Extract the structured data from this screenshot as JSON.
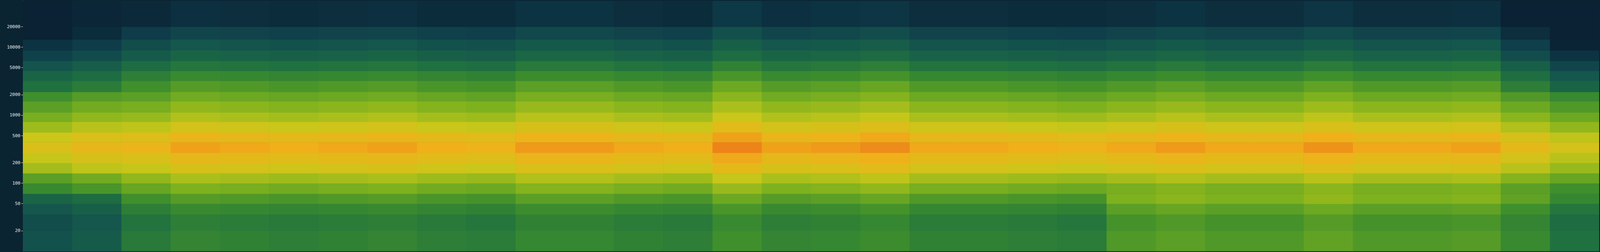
{
  "chart_data": {
    "type": "heatmap",
    "log": "y",
    "grid": false,
    "tick_labels": "y",
    "xlim": [
      0,
      32
    ],
    "ylim": [
      10,
      48000
    ],
    "yticks": [
      20,
      50,
      100,
      200,
      500,
      1000,
      2000,
      5000,
      10000,
      20000
    ],
    "zlim": [
      -120,
      -30
    ],
    "x_edges": [
      0,
      1,
      2,
      3,
      4,
      5,
      6,
      7,
      8,
      9,
      10,
      11,
      12,
      13,
      14,
      15,
      16,
      17,
      18,
      19,
      20,
      21,
      22,
      23,
      24,
      25,
      26,
      27,
      28,
      29,
      30,
      31,
      32
    ],
    "freq_edges": [
      10,
      20,
      35,
      50,
      70,
      100,
      140,
      200,
      280,
      400,
      560,
      800,
      1100,
      1600,
      2200,
      3200,
      4500,
      6300,
      9000,
      13000,
      20000,
      48000
    ],
    "cells": [
      [
        -100,
        -96,
        -83,
        -79,
        -80,
        -81,
        -80,
        -79,
        -81,
        -82,
        -78,
        -78,
        -80,
        -81,
        -75,
        -79,
        -78,
        -76,
        -80,
        -80,
        -81,
        -82,
        -72,
        -70,
        -72,
        -72,
        -69,
        -72,
        -72,
        -71,
        -77,
        -86
      ],
      [
        -102,
        -98,
        -85,
        -81,
        -82,
        -83,
        -82,
        -81,
        -83,
        -84,
        -80,
        -80,
        -82,
        -83,
        -77,
        -81,
        -80,
        -78,
        -82,
        -82,
        -83,
        -84,
        -74,
        -72,
        -74,
        -74,
        -71,
        -74,
        -74,
        -73,
        -79,
        -88
      ],
      [
        -98,
        -94,
        -81,
        -77,
        -78,
        -79,
        -78,
        -77,
        -79,
        -80,
        -76,
        -76,
        -78,
        -79,
        -73,
        -77,
        -76,
        -74,
        -78,
        -78,
        -79,
        -80,
        -70,
        -68,
        -70,
        -70,
        -67,
        -70,
        -70,
        -69,
        -75,
        -84
      ],
      [
        -92,
        -88,
        -75,
        -71,
        -72,
        -73,
        -72,
        -71,
        -73,
        -74,
        -70,
        -70,
        -72,
        -73,
        -67,
        -71,
        -70,
        -68,
        -72,
        -72,
        -73,
        -74,
        -64,
        -62,
        -64,
        -64,
        -61,
        -64,
        -64,
        -63,
        -69,
        -78
      ],
      [
        -77,
        -73,
        -68,
        -64,
        -65,
        -66,
        -65,
        -64,
        -66,
        -67,
        -63,
        -63,
        -65,
        -66,
        -60,
        -64,
        -63,
        -61,
        -65,
        -65,
        -66,
        -67,
        -65,
        -63,
        -65,
        -65,
        -62,
        -65,
        -65,
        -64,
        -70,
        -75
      ],
      [
        -70,
        -66,
        -61,
        -57,
        -58,
        -59,
        -58,
        -57,
        -59,
        -60,
        -56,
        -56,
        -58,
        -59,
        -53,
        -57,
        -56,
        -54,
        -58,
        -58,
        -59,
        -60,
        -58,
        -56,
        -58,
        -58,
        -55,
        -58,
        -58,
        -57,
        -63,
        -68
      ],
      [
        -58,
        -54,
        -53,
        -49,
        -50,
        -51,
        -50,
        -49,
        -51,
        -52,
        -48,
        -48,
        -50,
        -51,
        -45,
        -49,
        -48,
        -46,
        -50,
        -50,
        -51,
        -52,
        -50,
        -48,
        -50,
        -50,
        -47,
        -50,
        -50,
        -49,
        -55,
        -60
      ],
      [
        -53,
        -49,
        -48,
        -44,
        -45,
        -46,
        -45,
        -44,
        -46,
        -47,
        -43,
        -43,
        -45,
        -46,
        -40,
        -44,
        -43,
        -41,
        -45,
        -45,
        -46,
        -47,
        -45,
        -43,
        -45,
        -45,
        -42,
        -45,
        -45,
        -44,
        -50,
        -55
      ],
      [
        -48,
        -44,
        -43,
        -39,
        -40,
        -41,
        -40,
        -39,
        -41,
        -42,
        -38,
        -38,
        -40,
        -41,
        -35,
        -39,
        -38,
        -36,
        -40,
        -40,
        -41,
        -42,
        -40,
        -38,
        -40,
        -40,
        -37,
        -40,
        -40,
        -39,
        -45,
        -50
      ],
      [
        -52,
        -48,
        -47,
        -43,
        -44,
        -45,
        -44,
        -43,
        -45,
        -46,
        -42,
        -42,
        -44,
        -45,
        -39,
        -43,
        -42,
        -40,
        -44,
        -44,
        -45,
        -46,
        -44,
        -42,
        -44,
        -44,
        -41,
        -44,
        -44,
        -43,
        -49,
        -54
      ],
      [
        -59,
        -55,
        -54,
        -50,
        -51,
        -52,
        -51,
        -50,
        -52,
        -53,
        -49,
        -49,
        -51,
        -52,
        -46,
        -50,
        -49,
        -47,
        -51,
        -51,
        -52,
        -53,
        -51,
        -49,
        -51,
        -51,
        -48,
        -51,
        -51,
        -50,
        -56,
        -61
      ],
      [
        -65,
        -61,
        -60,
        -56,
        -57,
        -58,
        -57,
        -56,
        -58,
        -59,
        -55,
        -55,
        -57,
        -58,
        -52,
        -56,
        -55,
        -53,
        -57,
        -57,
        -58,
        -59,
        -57,
        -55,
        -57,
        -57,
        -54,
        -57,
        -57,
        -56,
        -62,
        -67
      ],
      [
        -70,
        -66,
        -65,
        -61,
        -62,
        -63,
        -62,
        -61,
        -63,
        -64,
        -60,
        -60,
        -62,
        -63,
        -57,
        -61,
        -60,
        -58,
        -62,
        -62,
        -63,
        -64,
        -62,
        -60,
        -62,
        -62,
        -59,
        -62,
        -62,
        -61,
        -67,
        -72
      ],
      [
        -75,
        -71,
        -70,
        -66,
        -67,
        -68,
        -67,
        -66,
        -68,
        -69,
        -65,
        -65,
        -67,
        -68,
        -62,
        -66,
        -65,
        -63,
        -67,
        -67,
        -68,
        -69,
        -67,
        -65,
        -67,
        -67,
        -64,
        -67,
        -67,
        -66,
        -72,
        -77
      ],
      [
        -86,
        -82,
        -75,
        -71,
        -72,
        -73,
        -72,
        -71,
        -73,
        -74,
        -70,
        -70,
        -72,
        -73,
        -67,
        -71,
        -70,
        -68,
        -72,
        -72,
        -73,
        -74,
        -72,
        -70,
        -72,
        -72,
        -69,
        -72,
        -72,
        -71,
        -81,
        -92
      ],
      [
        -92,
        -88,
        -81,
        -77,
        -78,
        -79,
        -78,
        -77,
        -79,
        -80,
        -76,
        -76,
        -78,
        -79,
        -73,
        -77,
        -76,
        -74,
        -78,
        -78,
        -79,
        -80,
        -78,
        -76,
        -78,
        -78,
        -75,
        -78,
        -78,
        -77,
        -87,
        -98
      ],
      [
        -99,
        -95,
        -88,
        -84,
        -85,
        -86,
        -85,
        -84,
        -86,
        -87,
        -83,
        -83,
        -85,
        -86,
        -80,
        -84,
        -83,
        -81,
        -85,
        -85,
        -86,
        -87,
        -85,
        -83,
        -85,
        -85,
        -82,
        -85,
        -85,
        -84,
        -94,
        -105
      ],
      [
        -107,
        -103,
        -96,
        -92,
        -93,
        -94,
        -93,
        -92,
        -94,
        -95,
        -91,
        -91,
        -93,
        -94,
        -88,
        -92,
        -91,
        -89,
        -93,
        -93,
        -94,
        -95,
        -93,
        -91,
        -93,
        -93,
        -90,
        -93,
        -93,
        -92,
        -102,
        -113
      ],
      [
        -113,
        -109,
        -102,
        -98,
        -99,
        -100,
        -99,
        -98,
        -100,
        -101,
        -97,
        -97,
        -99,
        -100,
        -94,
        -98,
        -97,
        -95,
        -99,
        -99,
        -100,
        -101,
        -99,
        -97,
        -99,
        -99,
        -96,
        -99,
        -99,
        -98,
        -108,
        -119
      ],
      [
        -120,
        -116,
        -109,
        -105,
        -106,
        -107,
        -106,
        -105,
        -107,
        -108,
        -104,
        -104,
        -106,
        -107,
        -101,
        -105,
        -104,
        -102,
        -106,
        -106,
        -107,
        -108,
        -106,
        -104,
        -106,
        -106,
        -103,
        -106,
        -106,
        -105,
        -115,
        -126
      ],
      [
        -122,
        -118,
        -117,
        -114,
        -115,
        -116,
        -115,
        -114,
        -116,
        -116,
        -113,
        -113,
        -115,
        -116,
        -111,
        -114,
        -113,
        -112,
        -115,
        -115,
        -116,
        -116,
        -115,
        -113,
        -115,
        -115,
        -112,
        -115,
        -115,
        -114,
        -120,
        -126
      ]
    ]
  }
}
